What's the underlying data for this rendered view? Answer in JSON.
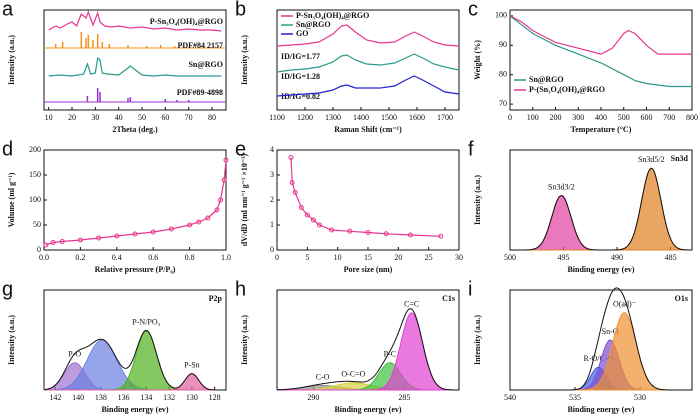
{
  "chart_data": [
    {
      "type": "line",
      "label": "a",
      "xlabel": "2Theta (deg.)",
      "ylabel": "Intensity (a.u.)",
      "xlim": [
        8,
        86
      ],
      "xticks": [
        10,
        20,
        30,
        40,
        50,
        60,
        70,
        80
      ],
      "ylim": [
        0,
        100
      ],
      "legend": "inline",
      "series": [
        {
          "name": "P-Sn₃O₄(OH)₄@RGO",
          "color": "#e8368f",
          "kind": "line",
          "x": [
            10,
            13,
            15,
            18,
            20,
            22,
            24,
            26,
            27,
            29,
            31,
            32,
            34,
            37,
            40,
            45,
            50,
            55,
            60,
            65,
            70,
            75,
            80,
            84
          ],
          "values": [
            80,
            84,
            82,
            86,
            88,
            84,
            96,
            92,
            98,
            85,
            97,
            88,
            84,
            83,
            84,
            82,
            83,
            81,
            82,
            80,
            81,
            80,
            80,
            79
          ]
        },
        {
          "name": "PDF#84 2157",
          "color": "#f0901e",
          "kind": "stick",
          "baseline": 62,
          "x": [
            13,
            16,
            24,
            26,
            27,
            29,
            31,
            33,
            36,
            44,
            52,
            58,
            64,
            72
          ],
          "values": [
            66,
            68,
            78,
            72,
            75,
            70,
            76,
            68,
            66,
            65,
            64,
            65,
            64,
            63
          ]
        },
        {
          "name": "Sn@RGO",
          "color": "#2a9a8a",
          "kind": "line",
          "x": [
            10,
            15,
            20,
            25,
            26.6,
            28,
            30,
            31,
            32,
            33,
            35,
            40,
            44,
            45,
            50,
            55,
            60,
            65,
            70,
            75,
            80,
            84
          ],
          "values": [
            34,
            35,
            34,
            36,
            46,
            36,
            37,
            52,
            50,
            37,
            36,
            35,
            42,
            44,
            35,
            34,
            35,
            34,
            34,
            34,
            34,
            34
          ]
        },
        {
          "name": "PDF#89-4898",
          "color": "#9b30d0",
          "kind": "stick",
          "baseline": 8,
          "x": [
            26.6,
            31,
            32,
            44,
            45,
            60,
            65,
            70
          ],
          "values": [
            14,
            22,
            18,
            12,
            13,
            11,
            10,
            10
          ]
        }
      ]
    },
    {
      "type": "line",
      "label": "b",
      "xlabel": "Raman Shift (cm⁻¹)",
      "ylabel": "Intensity (a.u.)",
      "xlim": [
        1100,
        1750
      ],
      "xticks": [
        1100,
        1200,
        1300,
        1400,
        1500,
        1600,
        1700
      ],
      "ylim": [
        0,
        100
      ],
      "legend": "upper left",
      "annotations": [
        "ID/IG=1.77",
        "ID/IG=1.28",
        "ID/IG=0.82"
      ],
      "series": [
        {
          "name": "P-Sn₃O₄(OH)₄@RGO",
          "color": "#e8368f",
          "kind": "line",
          "x": [
            1100,
            1150,
            1200,
            1250,
            1300,
            1330,
            1350,
            1380,
            1420,
            1470,
            1520,
            1560,
            1590,
            1620,
            1660,
            1700,
            1750
          ],
          "values": [
            64,
            65,
            66,
            68,
            76,
            84,
            85,
            78,
            70,
            67,
            68,
            74,
            78,
            74,
            68,
            65,
            64
          ]
        },
        {
          "name": "Sn@RGO",
          "color": "#2a9a8a",
          "kind": "line",
          "x": [
            1100,
            1150,
            1200,
            1250,
            1300,
            1330,
            1350,
            1380,
            1420,
            1470,
            1520,
            1560,
            1590,
            1620,
            1660,
            1700,
            1750
          ],
          "values": [
            38,
            40,
            41,
            43,
            48,
            54,
            55,
            50,
            46,
            45,
            47,
            52,
            56,
            52,
            46,
            43,
            40
          ]
        },
        {
          "name": "GO",
          "color": "#2020d0",
          "kind": "line",
          "x": [
            1100,
            1150,
            1200,
            1250,
            1300,
            1330,
            1350,
            1380,
            1420,
            1470,
            1520,
            1560,
            1590,
            1620,
            1660,
            1700,
            1750
          ],
          "values": [
            14,
            15,
            16,
            17,
            20,
            24,
            25,
            22,
            22,
            22,
            24,
            30,
            34,
            30,
            24,
            18,
            16
          ]
        }
      ]
    },
    {
      "type": "line",
      "label": "c",
      "xlabel": "Temperature (°C)",
      "ylabel": "Weight (%)",
      "xlim": [
        0,
        800
      ],
      "xticks": [
        0,
        100,
        200,
        300,
        400,
        500,
        600,
        700,
        800
      ],
      "ylim": [
        68,
        102
      ],
      "yticks": [
        70,
        80,
        90,
        100
      ],
      "legend": "lower left",
      "series": [
        {
          "name": "Sn@RGO",
          "color": "#2a9a8a",
          "kind": "line",
          "x": [
            0,
            50,
            100,
            150,
            200,
            300,
            400,
            450,
            500,
            550,
            600,
            700,
            800
          ],
          "values": [
            100,
            97,
            94,
            92,
            90,
            87,
            84,
            82,
            80,
            78,
            77,
            76,
            76
          ]
        },
        {
          "name": "P-(Sn₃O₄(OH)₄@RGO",
          "color": "#e8368f",
          "kind": "line",
          "x": [
            0,
            50,
            100,
            150,
            200,
            300,
            400,
            450,
            500,
            520,
            550,
            600,
            650,
            700,
            800
          ],
          "values": [
            100,
            98,
            95,
            93,
            91,
            89,
            87,
            89,
            94,
            95,
            94,
            90,
            87,
            87,
            87
          ]
        }
      ]
    },
    {
      "type": "line",
      "label": "d",
      "xlabel": "Relative pressure (P/P₀)",
      "ylabel": "Volume (ml g⁻¹)",
      "xlim": [
        0,
        1
      ],
      "xticks": [
        {
          "value": 0,
          "label": "0.0"
        },
        0.2,
        0.4,
        0.6,
        0.8,
        {
          "value": 1,
          "label": "1.0"
        }
      ],
      "ylim": [
        0,
        200
      ],
      "yticks": [
        0,
        50,
        100,
        150,
        200
      ],
      "series": [
        {
          "color": "#e8368f",
          "kind": "line",
          "markers": true,
          "x": [
            0.01,
            0.05,
            0.1,
            0.2,
            0.3,
            0.4,
            0.5,
            0.6,
            0.7,
            0.8,
            0.85,
            0.9,
            0.95,
            0.97,
            0.99,
            1.0
          ],
          "values": [
            10,
            15,
            17,
            20,
            24,
            28,
            32,
            36,
            42,
            50,
            56,
            64,
            80,
            100,
            140,
            180
          ]
        }
      ]
    },
    {
      "type": "line",
      "label": "e",
      "xlabel": "Pore size (nm)",
      "ylabel": "dV/dD (ml nm⁻¹ g⁻¹ ×10⁻³)",
      "xlim": [
        0,
        30
      ],
      "xticks": [
        0,
        5,
        10,
        15,
        20,
        25,
        30
      ],
      "ylim": [
        0,
        4
      ],
      "yticks": [
        0,
        1,
        2,
        3,
        4
      ],
      "series": [
        {
          "color": "#e8368f",
          "kind": "line",
          "markers": true,
          "x": [
            2.3,
            2.5,
            3,
            4,
            5,
            6,
            7,
            9,
            12,
            15,
            18,
            22,
            27
          ],
          "values": [
            3.7,
            2.7,
            2.3,
            1.7,
            1.4,
            1.2,
            1.0,
            0.8,
            0.75,
            0.7,
            0.65,
            0.6,
            0.55
          ]
        }
      ]
    },
    {
      "type": "xps",
      "label": "f",
      "title": "Sn3d",
      "xlabel": "Binding energy (ev)",
      "ylabel": "Intensity (a.u.)",
      "xlim": [
        500,
        483
      ],
      "xticks": [
        500,
        495,
        490,
        485
      ],
      "ylim": [
        0,
        110
      ],
      "peaks": [
        {
          "name": "Sn3d3/2",
          "color": "#e040a0",
          "center": 495.2,
          "height": 60,
          "width": 0.9
        },
        {
          "name": "Sn3d5/2",
          "color": "#e08020",
          "center": 486.8,
          "height": 90,
          "width": 0.9
        }
      ]
    },
    {
      "type": "xps",
      "label": "g",
      "title": "P2p",
      "xlabel": "Binding energy (ev)",
      "ylabel": "Intensity (a.u.)",
      "xlim": [
        143,
        127
      ],
      "xticks": [
        142,
        140,
        138,
        136,
        134,
        132,
        130,
        128
      ],
      "ylim": [
        0,
        110
      ],
      "peaks": [
        {
          "name": "P-O",
          "color": "#a070d0",
          "center": 140.3,
          "height": 30,
          "width": 0.9
        },
        {
          "color": "#6a80e0",
          "center": 137.9,
          "height": 55,
          "width": 1.3
        },
        {
          "name": "P-N/PO₃",
          "color": "#50b020",
          "center": 134,
          "height": 65,
          "width": 0.9
        },
        {
          "name": "P-Sn",
          "color": "#e060a0",
          "center": 130,
          "height": 18,
          "width": 0.6
        }
      ]
    },
    {
      "type": "xps",
      "label": "h",
      "title": "C1s",
      "xlabel": "Binding energy (ev)",
      "ylabel": "Intensity (a.u.)",
      "xlim": [
        292,
        282
      ],
      "xticks": [
        290,
        285
      ],
      "ylim": [
        0,
        110
      ],
      "peaks": [
        {
          "name": "C-O",
          "color": "#909090",
          "center": 289.5,
          "height": 5,
          "width": 1
        },
        {
          "name": "O-C=O",
          "color": "#d8d040",
          "center": 287.8,
          "height": 8,
          "width": 1
        },
        {
          "name": "P-C",
          "color": "#40c040",
          "center": 285.8,
          "height": 30,
          "width": 0.6
        },
        {
          "name": "C=C",
          "color": "#e040d0",
          "center": 284.6,
          "height": 85,
          "width": 0.6
        }
      ]
    },
    {
      "type": "xps",
      "label": "i",
      "title": "O1s",
      "xlabel": "Binding energy (ev)",
      "ylabel": "Intensity (a.u.)",
      "xlim": [
        540,
        526
      ],
      "xticks": [
        540,
        535,
        530
      ],
      "ylim": [
        0,
        110
      ],
      "peaks": [
        {
          "name": "R-O/C-O",
          "color": "#4060e0",
          "center": 533.2,
          "height": 25,
          "width": 0.6
        },
        {
          "name": "Sn-O",
          "color": "#8050d0",
          "center": 532.3,
          "height": 55,
          "width": 0.7
        },
        {
          "name": "O(ad)⁻",
          "color": "#f09030",
          "center": 531.2,
          "height": 85,
          "width": 0.9
        }
      ]
    }
  ]
}
